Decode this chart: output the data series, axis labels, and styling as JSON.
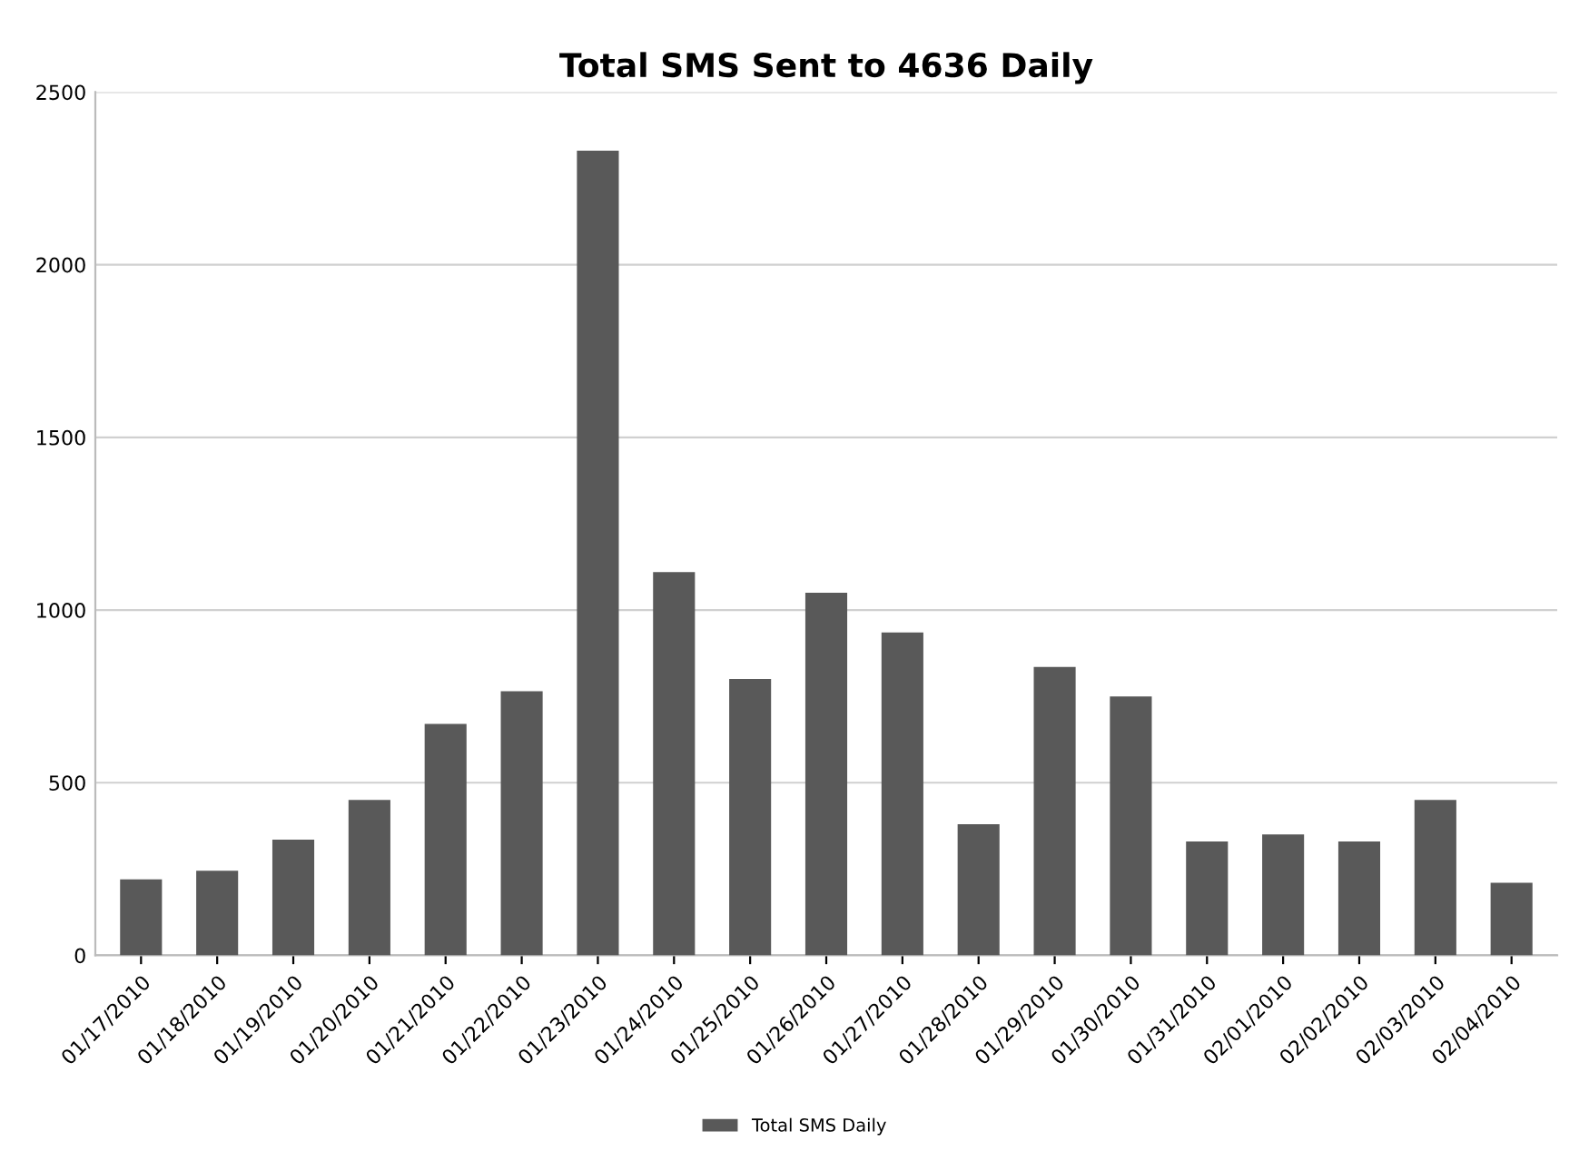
{
  "chart_data": {
    "type": "bar",
    "title": "Total SMS Sent to 4636 Daily",
    "categories": [
      "01/17/2010",
      "01/18/2010",
      "01/19/2010",
      "01/20/2010",
      "01/21/2010",
      "01/22/2010",
      "01/23/2010",
      "01/24/2010",
      "01/25/2010",
      "01/26/2010",
      "01/27/2010",
      "01/28/2010",
      "01/29/2010",
      "01/30/2010",
      "01/31/2010",
      "02/01/2010",
      "02/02/2010",
      "02/03/2010",
      "02/04/2010"
    ],
    "series": [
      {
        "name": "Total SMS Daily",
        "color": "#595959",
        "values": [
          220,
          245,
          335,
          450,
          670,
          765,
          2330,
          1110,
          800,
          1050,
          935,
          380,
          835,
          750,
          330,
          350,
          330,
          450,
          210
        ]
      }
    ],
    "ylim": [
      0,
      2500
    ],
    "yticks": [
      0,
      500,
      1000,
      1500,
      2000,
      2500
    ],
    "grid": "y",
    "legend": "bottom"
  }
}
